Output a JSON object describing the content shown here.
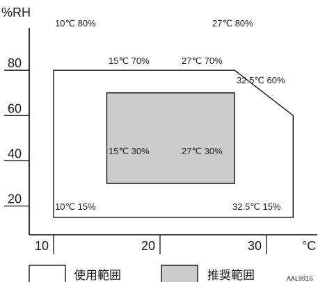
{
  "chart_data": {
    "type": "area",
    "title": "",
    "xlabel": "°C",
    "ylabel": "%RH",
    "xlim": [
      10,
      33
    ],
    "ylim": [
      10,
      82
    ],
    "x_ticks": [
      10,
      20,
      30
    ],
    "x_tick_labels": [
      "10",
      "20",
      "30"
    ],
    "y_ticks": [
      20,
      40,
      60,
      80
    ],
    "y_tick_labels": [
      "20",
      "40",
      "60",
      "80"
    ],
    "grid": false,
    "legend_position": "bottom",
    "series": [
      {
        "name": "使用範囲",
        "fill": "#ffffff",
        "stroke": "#000000",
        "points": [
          [
            10,
            15
          ],
          [
            10,
            80
          ],
          [
            27,
            80
          ],
          [
            32.5,
            60
          ],
          [
            32.5,
            15
          ]
        ],
        "corner_labels": [
          {
            "text": "10℃ 80%",
            "anchor": "start"
          },
          {
            "text": "27℃ 80%",
            "anchor": "start"
          },
          {
            "text": "32.5℃ 60%",
            "anchor": "start"
          },
          {
            "text": "32.5℃ 15%",
            "anchor": "start"
          },
          {
            "text": "10℃ 15%",
            "anchor": "start"
          }
        ]
      },
      {
        "name": "推奨範囲",
        "fill": "#cccccc",
        "stroke": "#000000",
        "points": [
          [
            15,
            30
          ],
          [
            15,
            70
          ],
          [
            27,
            70
          ],
          [
            27,
            30
          ]
        ],
        "corner_labels": [
          {
            "text": "15℃ 70%",
            "anchor": "start"
          },
          {
            "text": "27℃ 70%",
            "anchor": "start"
          },
          {
            "text": "15℃ 30%",
            "anchor": "start"
          },
          {
            "text": "27℃ 30%",
            "anchor": "start"
          }
        ]
      }
    ],
    "annotation": "AAL991S"
  }
}
